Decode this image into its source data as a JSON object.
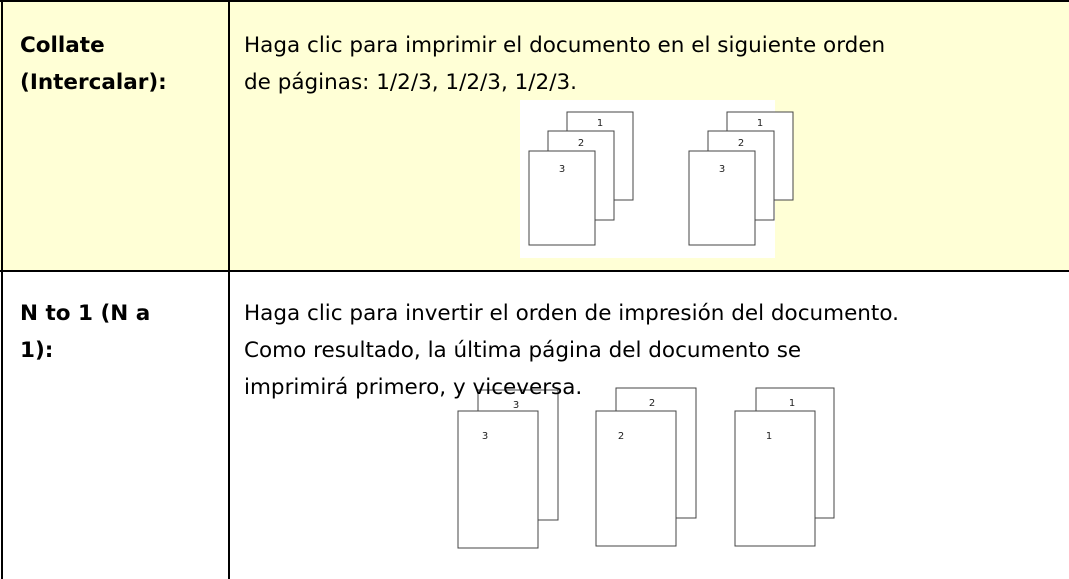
{
  "table": {
    "rows": [
      {
        "label_lines": [
          "Collate",
          "(Intercalar):"
        ],
        "description_lines": [
          "Haga clic para imprimir el documento en el siguiente orden",
          "de páginas: 1/2/3, 1/2/3, 1/2/3."
        ],
        "illustration": {
          "stacks": [
            {
              "pages": [
                "1",
                "2",
                "3"
              ]
            },
            {
              "pages": [
                "1",
                "2",
                "3"
              ]
            }
          ]
        }
      },
      {
        "label_lines": [
          "N to 1 (N a",
          "1):"
        ],
        "description_lines": [
          "Haga clic para invertir el orden de impresión del documento.",
          "Como resultado, la última página del documento se",
          "imprimirá primero, y viceversa."
        ],
        "illustration": {
          "pairs": [
            {
              "back": "3",
              "front": "3"
            },
            {
              "back": "2",
              "front": "2"
            },
            {
              "back": "1",
              "front": "1"
            }
          ]
        }
      }
    ]
  }
}
